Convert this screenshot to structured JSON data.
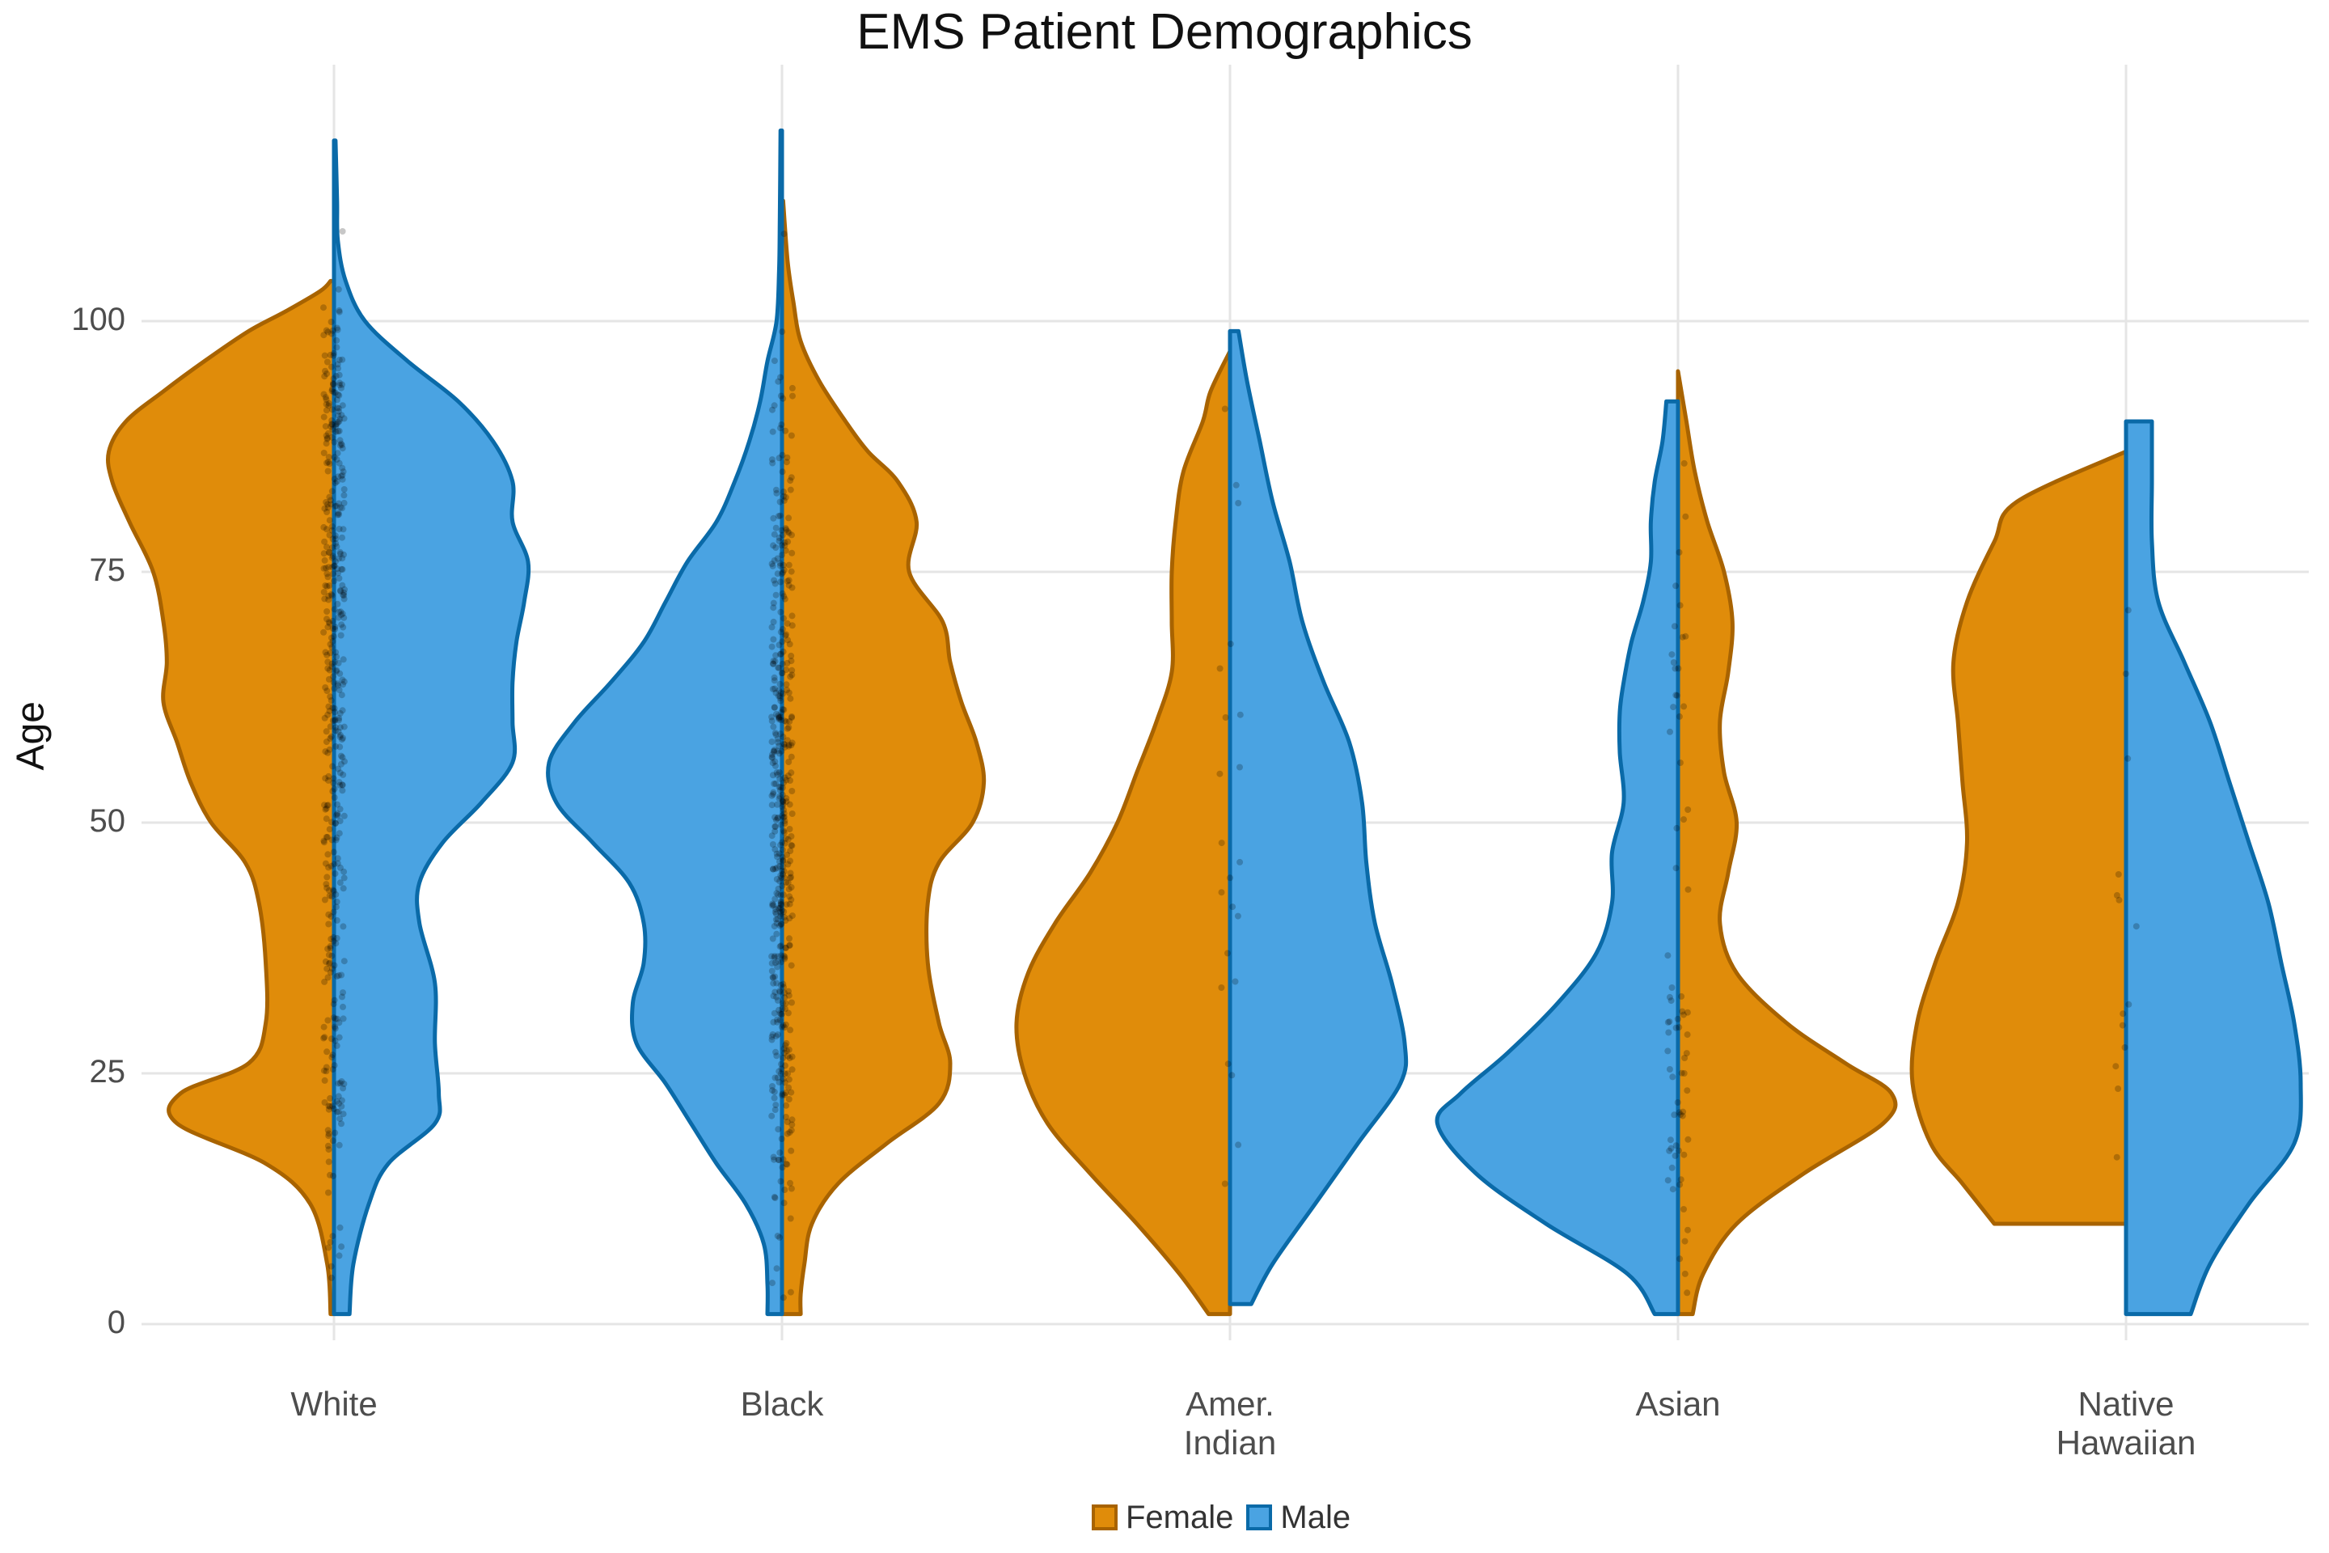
{
  "chart_data": {
    "type": "split-violin",
    "title": "EMS Patient Demographics",
    "xlabel": "",
    "ylabel": "Age",
    "ylim": [
      0,
      122
    ],
    "yticks": [
      0,
      25,
      50,
      75,
      100
    ],
    "grid": true,
    "legend_position": "bottom",
    "categories": [
      "White",
      "Black",
      "Amer.\nIndian",
      "Asian",
      "Native\nHawaiian"
    ],
    "series": [
      {
        "name": "Female",
        "fill": "#E08C0A",
        "stroke": "#A86300",
        "violins": [
          {
            "category": "White",
            "side": "left",
            "min": 1,
            "max": 104,
            "max_width": 0.58,
            "profile": [
              [
                1,
                0.01
              ],
              [
                6,
                0.02
              ],
              [
                12,
                0.07
              ],
              [
                16,
                0.2
              ],
              [
                20,
                0.46
              ],
              [
                23,
                0.45
              ],
              [
                26,
                0.25
              ],
              [
                30,
                0.2
              ],
              [
                36,
                0.2
              ],
              [
                42,
                0.22
              ],
              [
                46,
                0.26
              ],
              [
                50,
                0.36
              ],
              [
                54,
                0.42
              ],
              [
                58,
                0.46
              ],
              [
                62,
                0.5
              ],
              [
                66,
                0.49
              ],
              [
                70,
                0.5
              ],
              [
                75,
                0.53
              ],
              [
                80,
                0.6
              ],
              [
                84,
                0.65
              ],
              [
                87,
                0.66
              ],
              [
                90,
                0.61
              ],
              [
                93,
                0.5
              ],
              [
                96,
                0.38
              ],
              [
                99,
                0.25
              ],
              [
                101,
                0.14
              ],
              [
                103,
                0.04
              ],
              [
                104,
                0.01
              ]
            ]
          },
          {
            "category": "Black",
            "side": "right",
            "min": 1,
            "max": 112,
            "max_width": 0.52,
            "profile": [
              [
                1,
                0.05
              ],
              [
                3,
                0.05
              ],
              [
                6,
                0.06
              ],
              [
                10,
                0.08
              ],
              [
                14,
                0.15
              ],
              [
                18,
                0.28
              ],
              [
                22,
                0.42
              ],
              [
                26,
                0.45
              ],
              [
                30,
                0.42
              ],
              [
                36,
                0.39
              ],
              [
                42,
                0.39
              ],
              [
                46,
                0.42
              ],
              [
                50,
                0.51
              ],
              [
                54,
                0.54
              ],
              [
                58,
                0.52
              ],
              [
                62,
                0.48
              ],
              [
                66,
                0.45
              ],
              [
                70,
                0.43
              ],
              [
                75,
                0.34
              ],
              [
                80,
                0.36
              ],
              [
                84,
                0.31
              ],
              [
                87,
                0.23
              ],
              [
                90,
                0.17
              ],
              [
                94,
                0.1
              ],
              [
                98,
                0.05
              ],
              [
                102,
                0.03
              ],
              [
                106,
                0.015
              ],
              [
                112,
                0.003
              ]
            ]
          },
          {
            "category": "Amer.\nIndian",
            "side": "left",
            "min": 1,
            "max": 97,
            "max_width": 0.55,
            "profile": [
              [
                1,
                0.055
              ],
              [
                5,
                0.13
              ],
              [
                10,
                0.24
              ],
              [
                15,
                0.36
              ],
              [
                20,
                0.47
              ],
              [
                25,
                0.53
              ],
              [
                30,
                0.55
              ],
              [
                35,
                0.52
              ],
              [
                40,
                0.45
              ],
              [
                45,
                0.36
              ],
              [
                50,
                0.29
              ],
              [
                55,
                0.24
              ],
              [
                60,
                0.19
              ],
              [
                65,
                0.15
              ],
              [
                70,
                0.15
              ],
              [
                75,
                0.15
              ],
              [
                80,
                0.14
              ],
              [
                85,
                0.12
              ],
              [
                90,
                0.07
              ],
              [
                93,
                0.05
              ],
              [
                97,
                0.0
              ]
            ]
          },
          {
            "category": "Asian",
            "side": "right",
            "min": 1,
            "max": 95,
            "max_width": 0.55,
            "profile": [
              [
                1,
                0.035
              ],
              [
                5,
                0.06
              ],
              [
                10,
                0.14
              ],
              [
                15,
                0.3
              ],
              [
                20,
                0.49
              ],
              [
                23,
                0.51
              ],
              [
                26,
                0.4
              ],
              [
                30,
                0.26
              ],
              [
                35,
                0.14
              ],
              [
                40,
                0.1
              ],
              [
                45,
                0.12
              ],
              [
                50,
                0.14
              ],
              [
                55,
                0.11
              ],
              [
                60,
                0.1
              ],
              [
                65,
                0.12
              ],
              [
                70,
                0.13
              ],
              [
                75,
                0.11
              ],
              [
                80,
                0.07
              ],
              [
                85,
                0.04
              ],
              [
                90,
                0.02
              ],
              [
                95,
                0.0
              ]
            ]
          },
          {
            "category": "Native\nHawaiian",
            "side": "left",
            "min": 10,
            "max": 87,
            "max_width": 0.55,
            "profile": [
              [
                10,
                0.29
              ],
              [
                14,
                0.36
              ],
              [
                18,
                0.43
              ],
              [
                24,
                0.47
              ],
              [
                30,
                0.46
              ],
              [
                36,
                0.42
              ],
              [
                42,
                0.37
              ],
              [
                48,
                0.35
              ],
              [
                54,
                0.36
              ],
              [
                60,
                0.37
              ],
              [
                66,
                0.38
              ],
              [
                72,
                0.35
              ],
              [
                78,
                0.29
              ],
              [
                82,
                0.24
              ],
              [
                87,
                0.0
              ]
            ]
          }
        ]
      },
      {
        "name": "Male",
        "fill": "#4AA3E2",
        "stroke": "#0A6AA8",
        "violins": [
          {
            "category": "White",
            "side": "right",
            "min": 1,
            "max": 118,
            "max_width": 0.5,
            "profile": [
              [
                1,
                0.04
              ],
              [
                6,
                0.05
              ],
              [
                12,
                0.09
              ],
              [
                16,
                0.14
              ],
              [
                20,
                0.26
              ],
              [
                23,
                0.27
              ],
              [
                28,
                0.26
              ],
              [
                34,
                0.26
              ],
              [
                40,
                0.22
              ],
              [
                44,
                0.22
              ],
              [
                48,
                0.28
              ],
              [
                52,
                0.38
              ],
              [
                56,
                0.46
              ],
              [
                60,
                0.46
              ],
              [
                64,
                0.46
              ],
              [
                68,
                0.47
              ],
              [
                72,
                0.49
              ],
              [
                76,
                0.5
              ],
              [
                80,
                0.46
              ],
              [
                84,
                0.46
              ],
              [
                88,
                0.41
              ],
              [
                92,
                0.32
              ],
              [
                96,
                0.19
              ],
              [
                100,
                0.08
              ],
              [
                104,
                0.03
              ],
              [
                108,
                0.01
              ],
              [
                112,
                0.008
              ],
              [
                118,
                0.004
              ]
            ]
          },
          {
            "category": "Black",
            "side": "left",
            "min": 1,
            "max": 119,
            "max_width": 0.6,
            "profile": [
              [
                1,
                0.04
              ],
              [
                4,
                0.04
              ],
              [
                8,
                0.05
              ],
              [
                12,
                0.1
              ],
              [
                16,
                0.18
              ],
              [
                20,
                0.25
              ],
              [
                24,
                0.32
              ],
              [
                28,
                0.4
              ],
              [
                32,
                0.41
              ],
              [
                36,
                0.38
              ],
              [
                40,
                0.38
              ],
              [
                44,
                0.42
              ],
              [
                48,
                0.52
              ],
              [
                52,
                0.62
              ],
              [
                56,
                0.64
              ],
              [
                60,
                0.57
              ],
              [
                64,
                0.47
              ],
              [
                68,
                0.38
              ],
              [
                72,
                0.32
              ],
              [
                76,
                0.26
              ],
              [
                80,
                0.18
              ],
              [
                84,
                0.13
              ],
              [
                88,
                0.09
              ],
              [
                92,
                0.06
              ],
              [
                96,
                0.04
              ],
              [
                100,
                0.015
              ],
              [
                105,
                0.008
              ],
              [
                110,
                0.006
              ],
              [
                119,
                0.004
              ]
            ]
          },
          {
            "category": "Amer.\nIndian",
            "side": "right",
            "min": 2,
            "max": 99,
            "max_width": 0.45,
            "profile": [
              [
                2,
                0.05
              ],
              [
                6,
                0.1
              ],
              [
                12,
                0.2
              ],
              [
                18,
                0.3
              ],
              [
                24,
                0.4
              ],
              [
                28,
                0.41
              ],
              [
                34,
                0.38
              ],
              [
                40,
                0.34
              ],
              [
                46,
                0.32
              ],
              [
                52,
                0.31
              ],
              [
                58,
                0.28
              ],
              [
                64,
                0.22
              ],
              [
                70,
                0.17
              ],
              [
                76,
                0.14
              ],
              [
                82,
                0.1
              ],
              [
                88,
                0.07
              ],
              [
                94,
                0.04
              ],
              [
                99,
                0.02
              ]
            ]
          },
          {
            "category": "Asian",
            "side": "left",
            "min": 1,
            "max": 92,
            "max_width": 0.62,
            "profile": [
              [
                1,
                0.06
              ],
              [
                5,
                0.13
              ],
              [
                10,
                0.34
              ],
              [
                15,
                0.52
              ],
              [
                20,
                0.62
              ],
              [
                23,
                0.56
              ],
              [
                27,
                0.44
              ],
              [
                32,
                0.31
              ],
              [
                37,
                0.21
              ],
              [
                42,
                0.17
              ],
              [
                47,
                0.17
              ],
              [
                52,
                0.14
              ],
              [
                57,
                0.15
              ],
              [
                61,
                0.15
              ],
              [
                64,
                0.14
              ],
              [
                68,
                0.12
              ],
              [
                72,
                0.09
              ],
              [
                76,
                0.07
              ],
              [
                80,
                0.07
              ],
              [
                84,
                0.06
              ],
              [
                88,
                0.04
              ],
              [
                92,
                0.03
              ]
            ]
          },
          {
            "category": "Native\nHawaiian",
            "side": "right",
            "min": 1,
            "max": 90,
            "max_width": 0.45,
            "profile": [
              [
                1,
                0.1
              ],
              [
                6,
                0.13
              ],
              [
                12,
                0.19
              ],
              [
                18,
                0.26
              ],
              [
                24,
                0.27
              ],
              [
                30,
                0.26
              ],
              [
                36,
                0.24
              ],
              [
                42,
                0.22
              ],
              [
                48,
                0.19
              ],
              [
                54,
                0.16
              ],
              [
                60,
                0.13
              ],
              [
                66,
                0.09
              ],
              [
                72,
                0.05
              ],
              [
                78,
                0.04
              ],
              [
                84,
                0.04
              ],
              [
                90,
                0.04
              ]
            ]
          }
        ]
      }
    ]
  }
}
